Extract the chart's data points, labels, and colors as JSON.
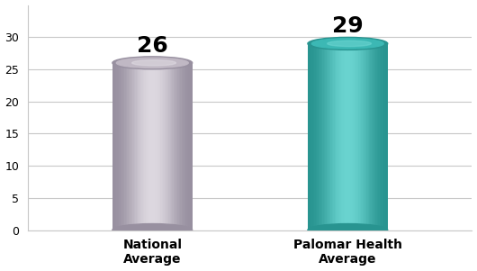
{
  "categories": [
    "National\nAverage",
    "Palomar Health\nAverage"
  ],
  "values": [
    26,
    29
  ],
  "bar_colors_main": [
    "#c0b8c4",
    "#3cb8b4"
  ],
  "bar_colors_light": [
    "#ddd8e0",
    "#6ad4d0"
  ],
  "bar_colors_dark": [
    "#9890a0",
    "#289490"
  ],
  "bar_colors_edge": [
    "#b0a8b8",
    "#2aa8a4"
  ],
  "value_labels": [
    "26",
    "29"
  ],
  "ylim": [
    0,
    35
  ],
  "yticks": [
    0,
    5,
    10,
    15,
    20,
    25,
    30
  ],
  "background_color": "#ffffff",
  "grid_color": "#c8c8c8",
  "label_fontsize": 10,
  "value_fontsize": 18,
  "bar_width": 0.18,
  "bar_positions": [
    0.28,
    0.72
  ],
  "xlim": [
    0,
    1
  ]
}
